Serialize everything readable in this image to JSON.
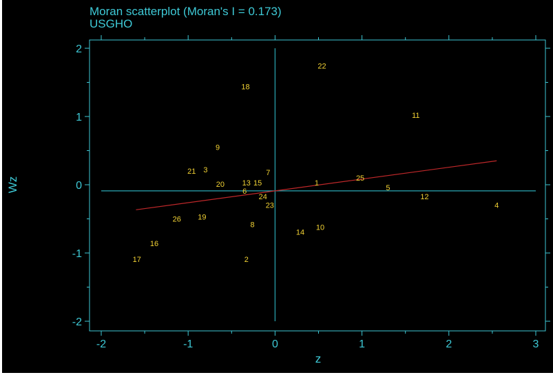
{
  "chart_data": {
    "type": "scatter",
    "title": "Moran scatterplot (Moran's I = 0.173)",
    "subtitle": "USGHO",
    "xlabel": "z",
    "ylabel": "Wz",
    "xlim": [
      -2,
      3
    ],
    "ylim": [
      -2,
      2
    ],
    "xticks": [
      -2,
      -1,
      0,
      1,
      2,
      3
    ],
    "yticks": [
      -2,
      -1,
      0,
      1,
      2
    ],
    "grid": false,
    "reference_lines": {
      "x": 0,
      "y": -0.09
    },
    "fit_line": {
      "slope": 0.173,
      "intercept": -0.09,
      "x_range": [
        -1.6,
        2.55
      ]
    },
    "points": [
      {
        "label": "1",
        "x": 0.48,
        "y": 0.03
      },
      {
        "label": "2",
        "x": -0.33,
        "y": -1.09
      },
      {
        "label": "3",
        "x": -0.8,
        "y": 0.22
      },
      {
        "label": "4",
        "x": 2.55,
        "y": -0.3
      },
      {
        "label": "5",
        "x": 1.3,
        "y": -0.04
      },
      {
        "label": "6",
        "x": -0.35,
        "y": -0.09
      },
      {
        "label": "7",
        "x": -0.08,
        "y": 0.18
      },
      {
        "label": "8",
        "x": -0.26,
        "y": -0.58
      },
      {
        "label": "9",
        "x": -0.66,
        "y": 0.55
      },
      {
        "label": "10",
        "x": 0.52,
        "y": -0.62
      },
      {
        "label": "11",
        "x": 1.62,
        "y": 1.02
      },
      {
        "label": "12",
        "x": 1.72,
        "y": -0.17
      },
      {
        "label": "13",
        "x": -0.33,
        "y": 0.03
      },
      {
        "label": "14",
        "x": 0.29,
        "y": -0.69
      },
      {
        "label": "15",
        "x": -0.2,
        "y": 0.03
      },
      {
        "label": "16",
        "x": -1.39,
        "y": -0.86
      },
      {
        "label": "17",
        "x": -1.59,
        "y": -1.09
      },
      {
        "label": "18",
        "x": -0.34,
        "y": 1.44
      },
      {
        "label": "19",
        "x": -0.84,
        "y": -0.47
      },
      {
        "label": "20",
        "x": -0.63,
        "y": 0.01
      },
      {
        "label": "21",
        "x": -0.96,
        "y": 0.2
      },
      {
        "label": "22",
        "x": 0.54,
        "y": 1.74
      },
      {
        "label": "23",
        "x": -0.06,
        "y": -0.3
      },
      {
        "label": "24",
        "x": -0.14,
        "y": -0.17
      },
      {
        "label": "25",
        "x": 0.98,
        "y": 0.1
      },
      {
        "label": "26",
        "x": -1.13,
        "y": -0.5
      }
    ]
  },
  "colors": {
    "background": "#000000",
    "axis": "#3ec9d6",
    "reference_line": "#2aa9b6",
    "points": "#f2d234",
    "fit_line": "#c0282a"
  }
}
